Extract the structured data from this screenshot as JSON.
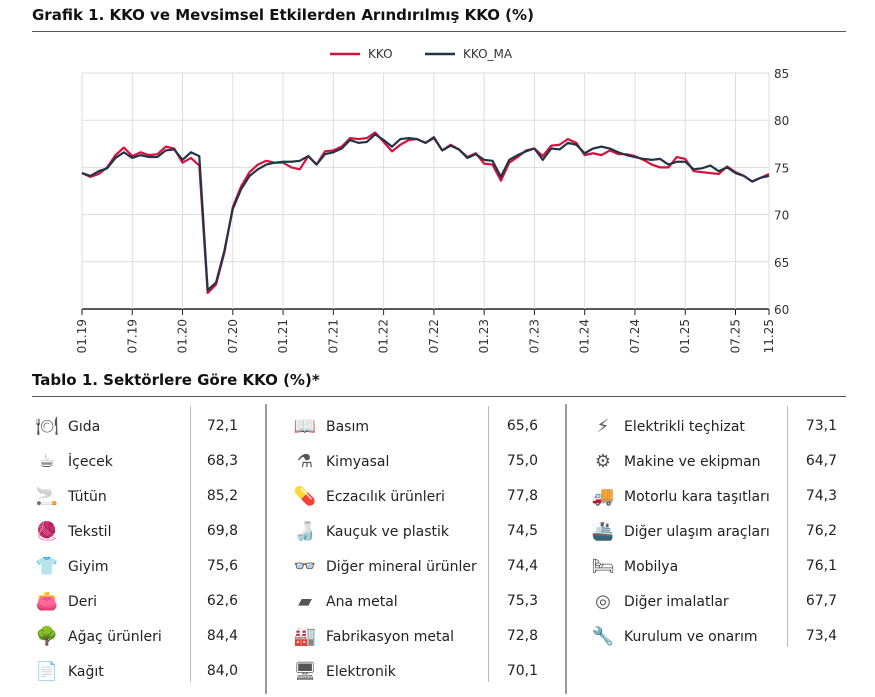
{
  "chart_title": "Grafik 1. KKO ve Mevsimsel Etkilerden Arındırılmış KKO (%)",
  "table_title": "Tablo 1. Sektörlere Göre KKO (%)*",
  "colors": {
    "kko": "#d6113d",
    "kko_ma": "#243447"
  },
  "chart_data": {
    "type": "line",
    "title": "Grafik 1. KKO ve Mevsimsel Etkilerden Arındırılmış KKO (%)",
    "legend": [
      "KKO",
      "KKO_MA"
    ],
    "legend_position": "top-center",
    "ylim": [
      60,
      85
    ],
    "yticks": [
      60,
      65,
      70,
      75,
      80,
      85
    ],
    "y_axis_side": "right",
    "xticks": [
      "01.19",
      "07.19",
      "01.20",
      "07.20",
      "01.21",
      "07.21",
      "01.22",
      "07.22",
      "01.23",
      "07.23",
      "01.24",
      "07.24",
      "01.25",
      "07.25",
      "11.25"
    ],
    "x_start": "01.19",
    "x_end": "11.25",
    "frequency": "monthly",
    "grid": true,
    "series": [
      {
        "name": "KKO",
        "values": [
          74.4,
          74.0,
          74.3,
          75.0,
          76.3,
          77.1,
          76.2,
          76.6,
          76.3,
          76.4,
          77.2,
          77.0,
          75.5,
          76.0,
          75.2,
          61.7,
          62.6,
          66.0,
          70.8,
          73.0,
          74.5,
          75.3,
          75.7,
          75.5,
          75.5,
          75.0,
          74.8,
          76.2,
          75.3,
          76.7,
          76.8,
          77.2,
          78.1,
          78.0,
          78.1,
          78.7,
          77.7,
          76.7,
          77.4,
          77.9,
          78.0,
          77.6,
          78.1,
          76.8,
          77.4,
          76.9,
          76.1,
          76.5,
          75.4,
          75.3,
          73.6,
          75.5,
          76.1,
          76.8,
          77.0,
          76.2,
          77.3,
          77.4,
          78.0,
          77.6,
          76.3,
          76.5,
          76.3,
          76.8,
          76.4,
          76.4,
          76.2,
          75.8,
          75.3,
          75.0,
          75.0,
          76.1,
          75.9,
          74.6,
          74.5,
          74.4,
          74.3,
          75.1,
          74.5,
          74.1,
          73.5,
          73.9,
          74.3
        ]
      },
      {
        "name": "KKO_MA",
        "values": [
          74.4,
          74.1,
          74.6,
          74.9,
          76.0,
          76.6,
          76.0,
          76.3,
          76.1,
          76.1,
          76.8,
          76.9,
          75.8,
          76.6,
          76.2,
          62.0,
          62.8,
          66.2,
          70.6,
          72.7,
          74.1,
          74.8,
          75.3,
          75.5,
          75.6,
          75.6,
          75.7,
          76.2,
          75.3,
          76.4,
          76.6,
          77.0,
          77.9,
          77.6,
          77.7,
          78.5,
          77.9,
          77.2,
          78.0,
          78.1,
          78.0,
          77.6,
          78.2,
          76.8,
          77.3,
          76.9,
          76.0,
          76.4,
          75.8,
          75.7,
          74.0,
          75.8,
          76.3,
          76.7,
          77.0,
          75.8,
          77.0,
          76.9,
          77.6,
          77.4,
          76.5,
          77.0,
          77.2,
          77.0,
          76.6,
          76.3,
          76.1,
          75.9,
          75.8,
          75.9,
          75.3,
          75.6,
          75.6,
          74.8,
          74.9,
          75.2,
          74.6,
          75.0,
          74.4,
          74.1,
          73.5,
          73.9,
          74.1
        ]
      }
    ]
  },
  "table": {
    "columns": [
      [
        {
          "icon": "fork-plate",
          "label": "Gıda",
          "value": "72,1"
        },
        {
          "icon": "cup",
          "label": "İçecek",
          "value": "68,3"
        },
        {
          "icon": "cigarette",
          "label": "Tütün",
          "value": "85,2"
        },
        {
          "icon": "yarn",
          "label": "Tekstil",
          "value": "69,8"
        },
        {
          "icon": "shirt",
          "label": "Giyim",
          "value": "75,6"
        },
        {
          "icon": "wallet",
          "label": "Deri",
          "value": "62,6"
        },
        {
          "icon": "tree",
          "label": "Ağaç ürünleri",
          "value": "84,4"
        },
        {
          "icon": "document",
          "label": "Kağıt",
          "value": "84,0"
        }
      ],
      [
        {
          "icon": "book",
          "label": "Basım",
          "value": "65,6"
        },
        {
          "icon": "flask",
          "label": "Kimyasal",
          "value": "75,0"
        },
        {
          "icon": "pills",
          "label": "Eczacılık ürünleri",
          "value": "77,8"
        },
        {
          "icon": "bottle",
          "label": "Kauçuk ve plastik",
          "value": "74,5"
        },
        {
          "icon": "glasses",
          "label": "Diğer mineral ürünler",
          "value": "74,4"
        },
        {
          "icon": "metal-bars",
          "label": "Ana metal",
          "value": "75,3"
        },
        {
          "icon": "factory",
          "label": "Fabrikasyon metal",
          "value": "72,8"
        },
        {
          "icon": "monitor",
          "label": "Elektronik",
          "value": "70,1"
        }
      ],
      [
        {
          "icon": "lightning",
          "label": "Elektrikli teçhizat",
          "value": "73,1"
        },
        {
          "icon": "gears",
          "label": "Makine ve ekipman",
          "value": "64,7"
        },
        {
          "icon": "truck",
          "label": "Motorlu kara taşıtları",
          "value": "74,3"
        },
        {
          "icon": "ship",
          "label": "Diğer ulaşım araçları",
          "value": "76,2"
        },
        {
          "icon": "bed",
          "label": "Mobilya",
          "value": "76,1"
        },
        {
          "icon": "aperture",
          "label": "Diğer imalatlar",
          "value": "67,7"
        },
        {
          "icon": "wrench-screwdriver",
          "label": "Kurulum ve onarım",
          "value": "73,4"
        }
      ]
    ]
  }
}
